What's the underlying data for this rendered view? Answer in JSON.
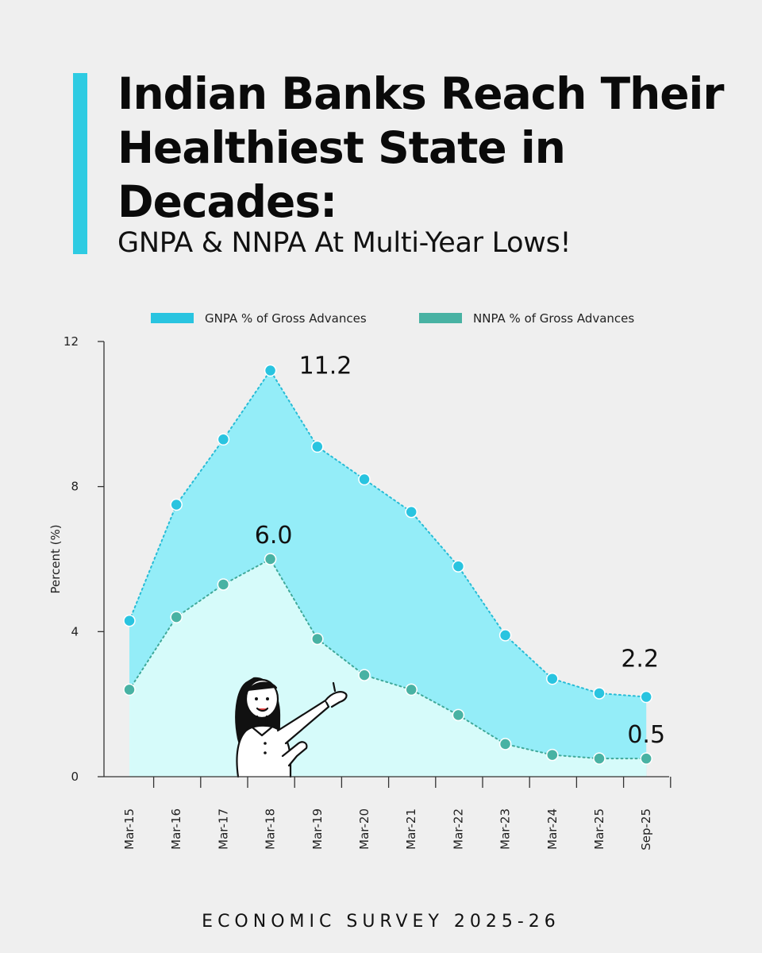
{
  "colors": {
    "accent": "#2ecbe2",
    "gnpa_fill": "#94edf8",
    "gnpa_point": "#29c4e0",
    "nnpa_fill": "#d6fbfa",
    "nnpa_point": "#48b2a3",
    "background": "#efefef"
  },
  "header": {
    "title": "Indian Banks Reach Their Healthiest State in Decades:",
    "subtitle": "GNPA & NNPA At Multi-Year Lows!"
  },
  "footer": {
    "source": "ECONOMIC SURVEY 2025-26"
  },
  "illustration": {
    "name": "woman-pointing-illustration"
  },
  "chart_data": {
    "type": "area",
    "categories": [
      "Mar-15",
      "Mar-16",
      "Mar-17",
      "Mar-18",
      "Mar-19",
      "Mar-20",
      "Mar-21",
      "Mar-22",
      "Mar-23",
      "Mar-24",
      "Mar-25",
      "Sep-25"
    ],
    "series": [
      {
        "name": "GNPA % of Gross Advances",
        "values": [
          4.3,
          7.5,
          9.3,
          11.2,
          9.1,
          8.2,
          7.3,
          5.8,
          3.9,
          2.7,
          2.3,
          2.2
        ]
      },
      {
        "name": "NNPA % of Gross Advances",
        "values": [
          2.4,
          4.4,
          5.3,
          6.0,
          3.8,
          2.8,
          2.4,
          1.7,
          0.9,
          0.6,
          0.5,
          0.5
        ]
      }
    ],
    "annotations": [
      {
        "series": 0,
        "index": 3,
        "text": "11.2"
      },
      {
        "series": 1,
        "index": 3,
        "text": "6.0"
      },
      {
        "series": 0,
        "index": 11,
        "text": "2.2"
      },
      {
        "series": 1,
        "index": 11,
        "text": "0.5"
      }
    ],
    "ylabel": "Percent (%)",
    "xlabel": "",
    "ylim": [
      0,
      12
    ],
    "yticks": [
      "0",
      "4",
      "8",
      "12"
    ],
    "grid": false,
    "legend_position": "top"
  }
}
